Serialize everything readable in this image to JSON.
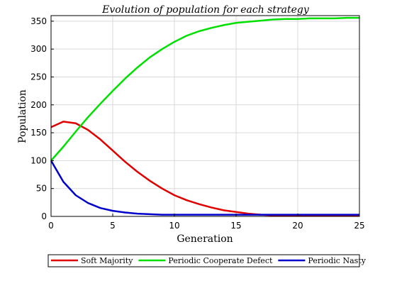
{
  "chart_data": {
    "type": "line",
    "title": "Evolution of population for each strategy",
    "xlabel": "Generation",
    "ylabel": "Population",
    "xlim": [
      0,
      25
    ],
    "ylim": [
      0,
      360
    ],
    "xticks": [
      0,
      5,
      10,
      15,
      20,
      25
    ],
    "yticks": [
      0,
      50,
      100,
      150,
      200,
      250,
      300,
      350
    ],
    "grid": true,
    "legend_position": "bottom",
    "x": [
      0,
      1,
      2,
      3,
      4,
      5,
      6,
      7,
      8,
      9,
      10,
      11,
      12,
      13,
      14,
      15,
      16,
      17,
      18,
      19,
      20,
      21,
      22,
      23,
      24,
      25
    ],
    "series": [
      {
        "name": "Soft Majority",
        "color": "#e00000",
        "values": [
          160,
          170,
          167,
          155,
          138,
          118,
          98,
          80,
          64,
          50,
          38,
          29,
          22,
          16,
          11,
          8,
          5,
          3,
          2,
          2,
          1,
          1,
          1,
          1,
          1,
          1
        ]
      },
      {
        "name": "Periodic Cooperate Defect",
        "color": "#00e000",
        "values": [
          100,
          125,
          152,
          178,
          202,
          225,
          247,
          267,
          285,
          300,
          313,
          324,
          332,
          338,
          343,
          347,
          349,
          351,
          353,
          354,
          354,
          355,
          355,
          355,
          356,
          356
        ]
      },
      {
        "name": "Periodic Nasty",
        "color": "#0000cc",
        "values": [
          100,
          62,
          38,
          24,
          15,
          10,
          7,
          5,
          4,
          3,
          3,
          3,
          3,
          3,
          3,
          3,
          3,
          3,
          3,
          3,
          3,
          3,
          3,
          3,
          3,
          3
        ]
      }
    ]
  }
}
